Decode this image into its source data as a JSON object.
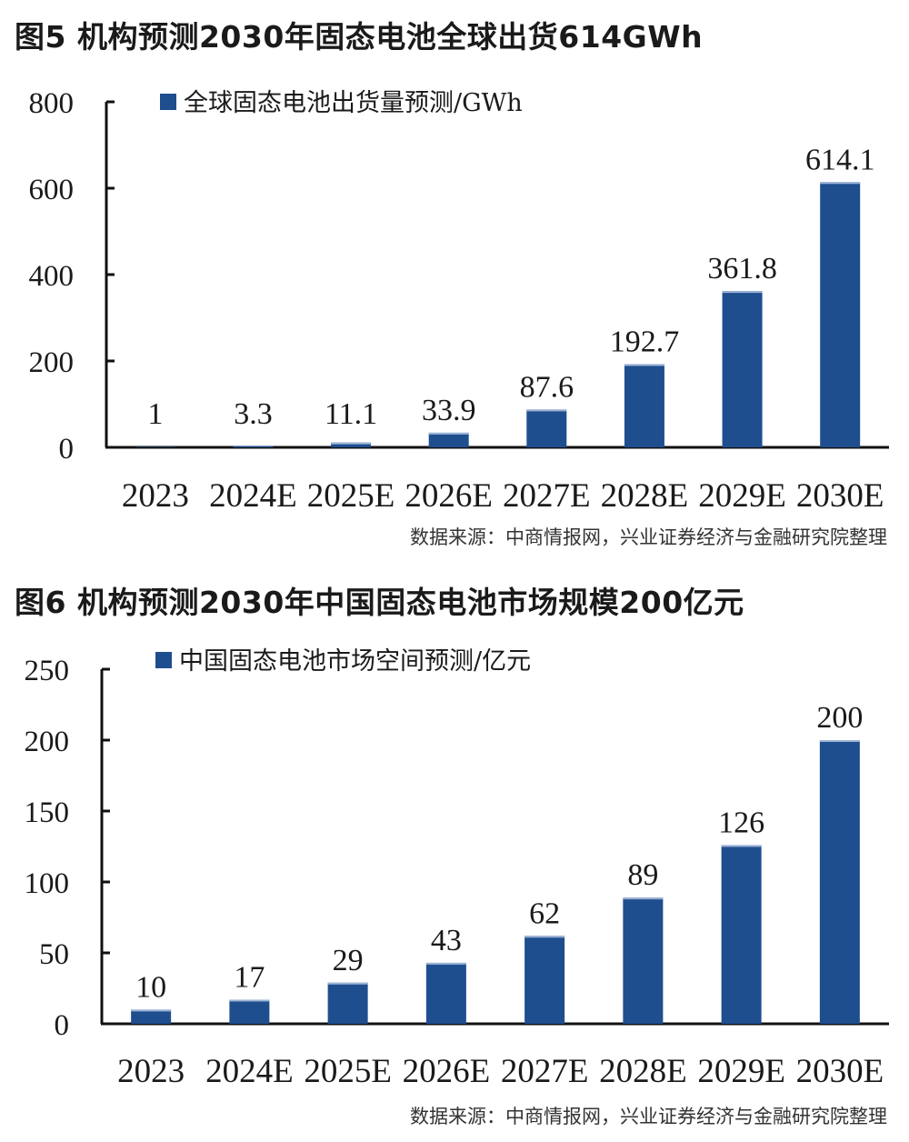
{
  "figures": [
    {
      "title": "图5  机构预测2030年固态电池全球出货614GWh",
      "source": "数据来源：中商情报网，兴业证券经济与金融研究院整理"
    },
    {
      "title": "图6  机构预测2030年中国固态电池市场规模200亿元",
      "source": "数据来源：中商情报网，兴业证券经济与金融研究院整理"
    }
  ],
  "chart_data": [
    {
      "type": "bar",
      "title": "",
      "categories": [
        "2023",
        "2024E",
        "2025E",
        "2026E",
        "2027E",
        "2028E",
        "2029E",
        "2030E"
      ],
      "series": [
        {
          "name": "全球固态电池出货量预测/GWh",
          "values": [
            1,
            3.3,
            11.1,
            33.9,
            87.6,
            192.7,
            361.8,
            614.1
          ],
          "labels": [
            "1",
            "3.3",
            "11.1",
            "33.9",
            "87.6",
            "192.7",
            "361.8",
            "614.1"
          ],
          "color": "#1f4e8f"
        }
      ],
      "yticks": [
        "0",
        "200",
        "400",
        "600",
        "800"
      ],
      "ylim": [
        0,
        800
      ],
      "xlabel": "",
      "ylabel": "",
      "grid": false,
      "legend": "top-left"
    },
    {
      "type": "bar",
      "title": "",
      "categories": [
        "2023",
        "2024E",
        "2025E",
        "2026E",
        "2027E",
        "2028E",
        "2029E",
        "2030E"
      ],
      "series": [
        {
          "name": "中国固态电池市场空间预测/亿元",
          "values": [
            10,
            17,
            29,
            43,
            62,
            89,
            126,
            200
          ],
          "labels": [
            "10",
            "17",
            "29",
            "43",
            "62",
            "89",
            "126",
            "200"
          ],
          "color": "#1f4e8f"
        }
      ],
      "yticks": [
        "0",
        "50",
        "100",
        "150",
        "200",
        "250"
      ],
      "ylim": [
        0,
        250
      ],
      "xlabel": "",
      "ylabel": "",
      "grid": false,
      "legend": "top-left"
    }
  ]
}
